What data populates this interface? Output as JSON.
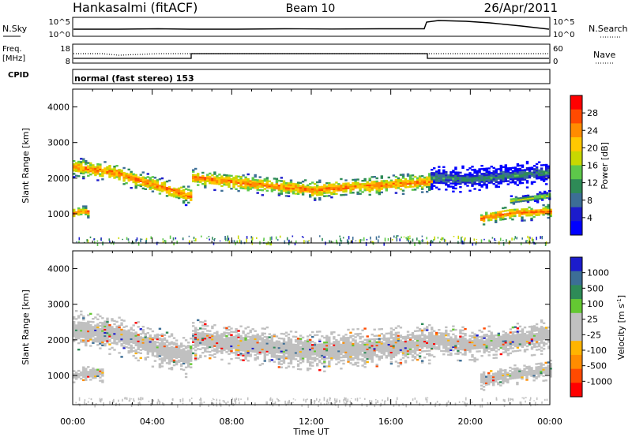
{
  "header": {
    "station": "Hankasalmi (fitACF)",
    "beam": "Beam 10",
    "date": "26/Apr/2011"
  },
  "status_panels": {
    "nsky_label": "N.Sky",
    "nsearch_label": "N.Search",
    "noise_ticks": [
      "10^5",
      "10^0"
    ],
    "freq_label_1": "Freq.",
    "freq_label_2": "[MHz]",
    "freq_ticks": [
      "18",
      "8"
    ],
    "nave_label": "Nave",
    "nave_ticks": [
      "60",
      "0"
    ],
    "cpid_label": "CPID",
    "cpid_text": "normal (fast stereo) 153"
  },
  "chart_data": [
    {
      "type": "heatmap",
      "name": "power-panel",
      "xlabel": "Time UT",
      "ylabel": "Slant Range [km]",
      "x_ticks": [
        "00:00",
        "04:00",
        "08:00",
        "12:00",
        "16:00",
        "20:00",
        "00:00"
      ],
      "xlim_hours": [
        0,
        24
      ],
      "y_ticks": [
        1000,
        2000,
        3000,
        4000
      ],
      "ylim": [
        180,
        4500
      ],
      "colorbar": {
        "label": "Power [dB]",
        "ticks": [
          "28",
          "24",
          "20",
          "16",
          "12",
          "8",
          "4"
        ],
        "colors": [
          "#ff0000",
          "#ff4a00",
          "#ff8c00",
          "#ffc800",
          "#c8d800",
          "#5dc84a",
          "#2e8b57",
          "#3c6e96",
          "#1c1ccc",
          "#0000ff"
        ]
      },
      "bands": [
        {
          "t": [
            0,
            2,
            4,
            6,
            6,
            8,
            12,
            16,
            18
          ],
          "r": [
            2300,
            2150,
            1800,
            1450,
            2000,
            1880,
            1650,
            1800,
            1900
          ],
          "w": 180,
          "level": "high"
        },
        {
          "t": [
            0,
            0.3,
            0.8
          ],
          "r": [
            1000,
            1050,
            1050
          ],
          "w": 110,
          "level": "high"
        },
        {
          "t": [
            18,
            20,
            22,
            24
          ],
          "r": [
            2000,
            1950,
            2050,
            2150
          ],
          "w": 230,
          "level": "low"
        },
        {
          "t": [
            20.5,
            22,
            24
          ],
          "r": [
            850,
            1000,
            1050
          ],
          "w": 140,
          "level": "high"
        },
        {
          "t": [
            22,
            24
          ],
          "r": [
            1350,
            1500
          ],
          "w": 90,
          "level": "mid"
        }
      ]
    },
    {
      "type": "heatmap",
      "name": "velocity-panel",
      "xlabel": "Time UT",
      "ylabel": "Slant Range [km]",
      "x_ticks": [
        "00:00",
        "04:00",
        "08:00",
        "12:00",
        "16:00",
        "20:00",
        "00:00"
      ],
      "xlim_hours": [
        0,
        24
      ],
      "y_ticks": [
        1000,
        2000,
        3000,
        4000
      ],
      "ylim": [
        180,
        4500
      ],
      "colorbar": {
        "label": "Velocity [m s",
        "label_sup": "-1",
        "label_close": "]",
        "ticks": [
          "1000",
          "500",
          "100",
          "25",
          "-25",
          "-100",
          "-500",
          "-1000"
        ],
        "colors": [
          "#1c1ccc",
          "#3c6e96",
          "#2e8b57",
          "#64c832",
          "#c0c0c0",
          "#c0c0c0",
          "#ffb400",
          "#ff8c00",
          "#ff4a00",
          "#ff0000"
        ]
      },
      "bands": [
        {
          "t": [
            0,
            2,
            4,
            6,
            6,
            8,
            12,
            16,
            18
          ],
          "r": [
            2250,
            2150,
            1800,
            1450,
            2000,
            1880,
            1650,
            1800,
            1900
          ],
          "w": 360,
          "level": "zero"
        },
        {
          "t": [
            0,
            1.5
          ],
          "r": [
            1000,
            1050
          ],
          "w": 160,
          "level": "zero"
        },
        {
          "t": [
            18,
            20,
            22,
            24
          ],
          "r": [
            1950,
            1850,
            1950,
            2100
          ],
          "w": 300,
          "level": "zero"
        },
        {
          "t": [
            20.5,
            22,
            24
          ],
          "r": [
            850,
            1000,
            1150
          ],
          "w": 180,
          "level": "zero"
        }
      ]
    }
  ]
}
